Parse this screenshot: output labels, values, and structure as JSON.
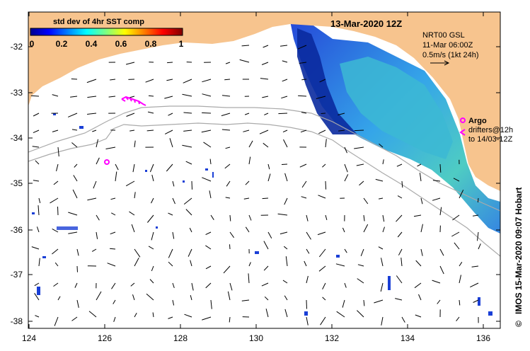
{
  "map": {
    "title": "13-Mar-2020 12Z",
    "colorbar": {
      "title": "std dev of 4hr SST comp",
      "ticks": [
        "0",
        "0.2",
        "0.4",
        "0.6",
        "0.8",
        "1"
      ]
    },
    "source_info": {
      "line1": "NRT00 GSL",
      "line2": "11-Mar 06:00Z",
      "line3": "0.5m/s (1kt 24h)"
    },
    "legend": {
      "argo_label": "Argo",
      "drifters_line1": "drifters@12h",
      "drifters_line2": "to 14/03-12Z"
    },
    "credit": "IMOS 15-Mar-2020 09:07 Hobart",
    "copyright_symbol": "©",
    "lat_labels": [
      "-32",
      "-33",
      "-34",
      "-35",
      "-36",
      "-37",
      "-38"
    ],
    "lon_labels": [
      "124",
      "126",
      "128",
      "130",
      "132",
      "134",
      "136"
    ],
    "colors": {
      "land": "#f7c48e",
      "ocean": "#ffffff",
      "argo": "#ff00ff",
      "contour": "#aaaaaa"
    }
  }
}
